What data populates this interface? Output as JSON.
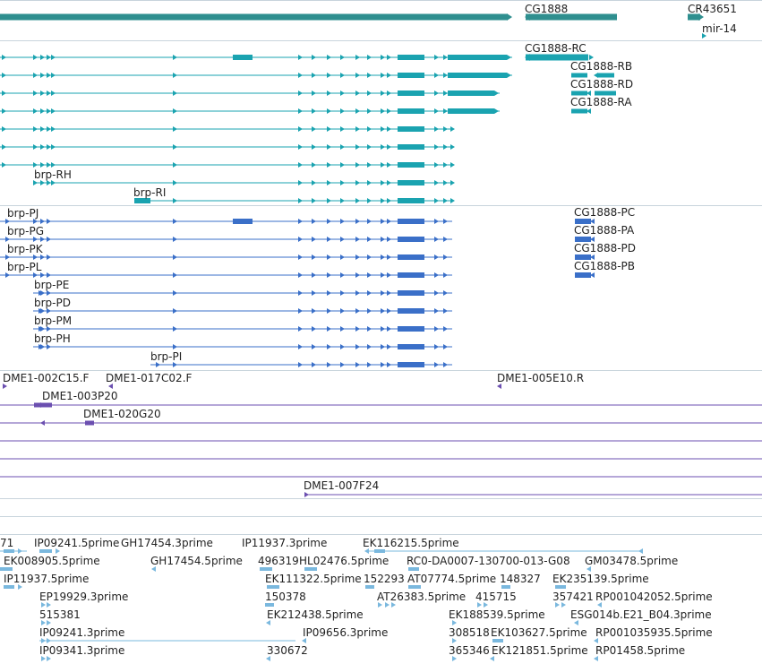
{
  "colors": {
    "gene": "#2f8f8f",
    "transcript": "#1aa3b0",
    "protein": "#3a6fc8",
    "clone": "#6b4fb0",
    "cdna": "#7ab8de",
    "separator": "#c8d4dc"
  },
  "genes": [
    "CG1888",
    "CR43651",
    "mir-14"
  ],
  "transcripts": [
    "CG1888-RC",
    "CG1888-RB",
    "CG1888-RD",
    "CG1888-RA",
    "brp-RH",
    "brp-RI"
  ],
  "proteins": [
    "brp-PJ",
    "brp-PG",
    "brp-PK",
    "brp-PL",
    "brp-PE",
    "brp-PD",
    "brp-PM",
    "brp-PH",
    "brp-PI",
    "CG1888-PC",
    "CG1888-PA",
    "CG1888-PD",
    "CG1888-PB"
  ],
  "clones": [
    "DME1-002C15.F",
    "DME1-017C02.F",
    "DME1-005E10.R",
    "DME1-003P20",
    "DME1-020G20",
    "DME1-007F24"
  ],
  "cdnas": [
    "71",
    "IP09241.5prime",
    "GH17454.3prime",
    "IP11937.3prime",
    "EK116215.5prime",
    "EK008905.5prime",
    "GH17454.5prime",
    "496319",
    "HL02476.5prime",
    "RC0-DA0007-130700-013-G08",
    "GM03478.5prime",
    "IP11937.5prime",
    "EK111322.5prime",
    "152293",
    "AT07774.5prime",
    "148327",
    "EK235139.5prime",
    "EP19929.3prime",
    "150378",
    "AT26383.5prime",
    "415715",
    "357421",
    "RP001042052.5prime",
    "515381",
    "EK212438.5prime",
    "EK188539.5prime",
    "ESG014b.E21_B04.3prime",
    "IP09241.3prime",
    "IP09656.3prime",
    "308518",
    "EK103627.5prime",
    "RP001035935.5prime",
    "IP09341.3prime",
    "330672",
    "365346",
    "EK121851.5prime",
    "RP01458.5prime"
  ]
}
